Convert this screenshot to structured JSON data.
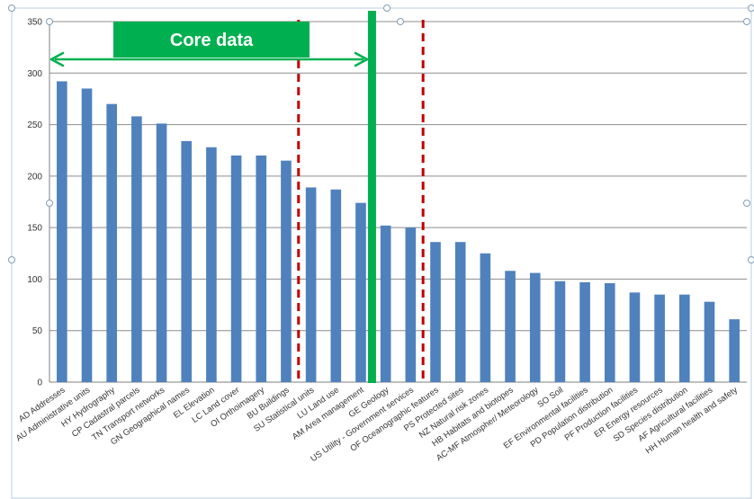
{
  "chart_data": {
    "type": "bar",
    "title": "",
    "xlabel": "",
    "ylabel": "",
    "ylim": [
      0,
      350
    ],
    "yticks": [
      0,
      50,
      100,
      150,
      200,
      250,
      300,
      350
    ],
    "grid": true,
    "legend": "none",
    "categories": [
      "AD Addresses",
      "AU Administrative units",
      "HY Hydrography",
      "CP Cadastral parcels",
      "TN Transport networks",
      "GN Geographical names",
      "EL Elevation",
      "LC Land cover",
      "OI Orthoimagery",
      "BU Buildings",
      "SU Statistical units",
      "LU Land use",
      "AM Area management",
      "GE Geology",
      "US Utility - Government services",
      "OF Oceanographic features",
      "PS Protected sites",
      "NZ Natural risk zones",
      "HB Habitats and biotopes",
      "AC-MF Atmospher/ Meteorology",
      "SO Soil",
      "EF Environmental facilities",
      "PD Population distribution",
      "PF Production facilities",
      "ER Energy resources",
      "SD Species distribution",
      "AF Agricultural facilities",
      "HH Human health and safety"
    ],
    "values": [
      292,
      285,
      270,
      258,
      251,
      234,
      228,
      220,
      220,
      215,
      189,
      187,
      174,
      152,
      150,
      136,
      136,
      125,
      108,
      106,
      98,
      97,
      96,
      87,
      85,
      85,
      78,
      61
    ],
    "annotation": {
      "label": "Core data"
    },
    "colors": {
      "bar": "#4f81bd",
      "grid": "#8c8c8c",
      "core_box": "#00b050",
      "core_line": "#00b050",
      "arrow": "#00b050",
      "dashed_line": "#c00000"
    }
  }
}
